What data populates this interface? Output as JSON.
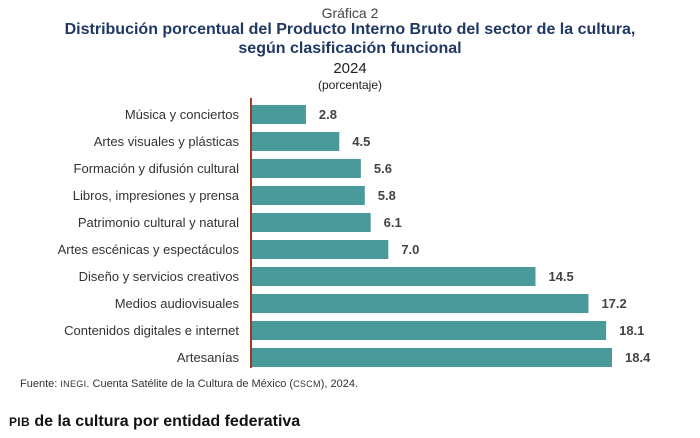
{
  "figure_label": "Gráfica 2",
  "title_line1": "Distribución porcentual del Producto Interno Bruto del sector de la cultura,",
  "title_line2": "según clasificación funcional",
  "year": "2024",
  "units": "(porcentaje)",
  "source": {
    "prefix": "Fuente:",
    "org": "INEGI",
    "text": ". Cuenta Satélite de la Cultura de México (",
    "acronym": "CSCM",
    "suffix": "), 2024."
  },
  "section_heading": {
    "prefix": "PIB",
    "text": " de la cultura por entidad federativa"
  },
  "colors": {
    "bar": "#4a9a9c",
    "axis": "#a0391e",
    "title": "#1f3864"
  },
  "chart_data": {
    "type": "bar",
    "orientation": "horizontal",
    "title": "Distribución porcentual del Producto Interno Bruto del sector de la cultura, según clasificación funcional",
    "categories": [
      "Música y conciertos",
      "Artes visuales y plásticas",
      "Formación y difusión cultural",
      "Libros, impresiones y prensa",
      "Patrimonio cultural y natural",
      "Artes escénicas y espectáculos",
      "Diseño y servicios creativos",
      "Medios audiovisuales",
      "Contenidos digitales e internet",
      "Artesanías"
    ],
    "values": [
      2.8,
      4.5,
      5.6,
      5.8,
      6.1,
      7.0,
      14.5,
      17.2,
      18.1,
      18.4
    ],
    "value_labels": [
      "2.8",
      "4.5",
      "5.6",
      "5.8",
      "6.1",
      "7.0",
      "14.5",
      "17.2",
      "18.1",
      "18.4"
    ],
    "xlim": [
      0,
      18.4
    ],
    "grid": false,
    "legend": "none"
  }
}
